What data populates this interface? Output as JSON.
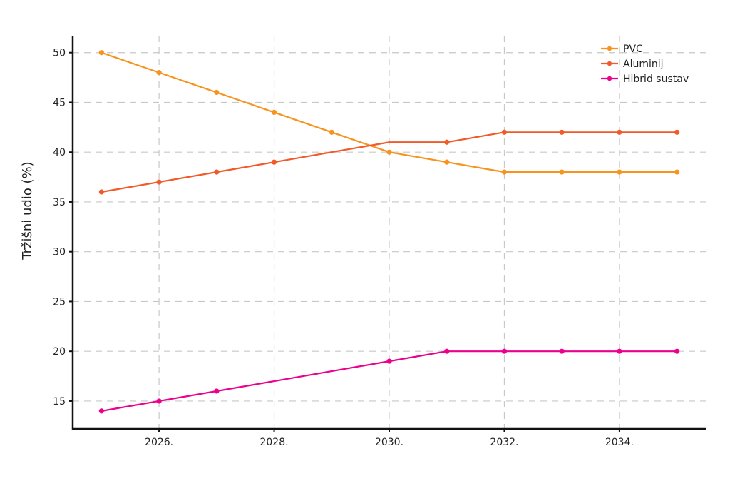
{
  "chart_data": {
    "type": "line",
    "title": "",
    "xlabel": "",
    "ylabel": "Tržišni udio (%)",
    "xlim": [
      2024.5,
      2035.5
    ],
    "ylim": [
      12.2,
      51.7
    ],
    "x_ticks": [
      2026,
      2028,
      2030,
      2032,
      2034
    ],
    "x_tick_labels": [
      "2026.",
      "2028.",
      "2030.",
      "2032.",
      "2034."
    ],
    "y_ticks": [
      15,
      20,
      25,
      30,
      35,
      40,
      45,
      50
    ],
    "y_tick_labels": [
      "15",
      "20",
      "25",
      "30",
      "35",
      "40",
      "45",
      "50"
    ],
    "grid": true,
    "legend_position": "top-right",
    "series": [
      {
        "name": "PVC",
        "color": "#f7941d",
        "x": [
          2025,
          2026,
          2027,
          2028,
          2029,
          2030,
          2031,
          2032,
          2033,
          2034,
          2035
        ],
        "y": [
          50,
          48,
          46,
          44,
          42,
          40,
          39,
          38,
          38,
          38,
          38
        ],
        "markers": [
          true,
          true,
          true,
          true,
          true,
          true,
          true,
          true,
          true,
          true,
          true
        ]
      },
      {
        "name": "Aluminij",
        "color": "#f15a29",
        "x": [
          2025,
          2026,
          2027,
          2028,
          2029,
          2030,
          2031,
          2032,
          2033,
          2034,
          2035
        ],
        "y": [
          36,
          37,
          38,
          39,
          40,
          41,
          41,
          42,
          42,
          42,
          42
        ],
        "markers": [
          true,
          true,
          true,
          true,
          false,
          false,
          true,
          true,
          true,
          true,
          true
        ]
      },
      {
        "name": "Hibrid sustav",
        "color": "#ec008c",
        "x": [
          2025,
          2026,
          2027,
          2028,
          2029,
          2030,
          2031,
          2032,
          2033,
          2034,
          2035
        ],
        "y": [
          14,
          15,
          16,
          17,
          18,
          19,
          20,
          20,
          20,
          20,
          20
        ],
        "markers": [
          true,
          true,
          true,
          false,
          false,
          true,
          true,
          true,
          true,
          true,
          true
        ]
      }
    ]
  }
}
